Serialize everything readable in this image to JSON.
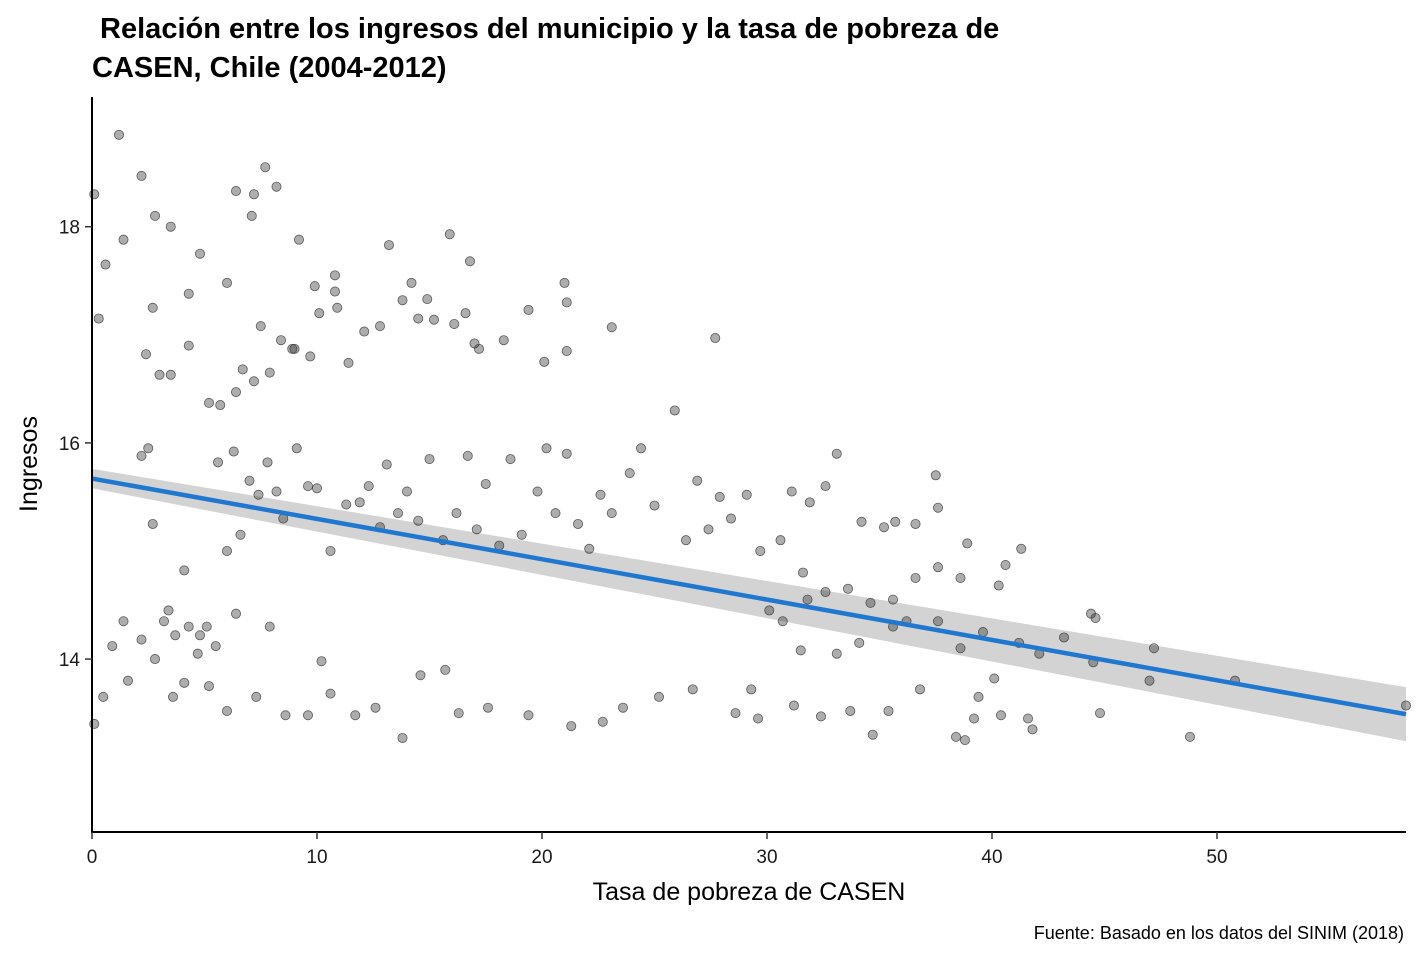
{
  "chart_data": {
    "type": "scatter",
    "title_lines": [
      " Relación entre los ingresos del municipio y la tasa de pobreza de",
      "CASEN, Chile (2004-2012)"
    ],
    "xlabel": "Tasa de pobreza de CASEN",
    "ylabel": "Ingresos",
    "caption": "Fuente: Basado en los datos del SINIM (2018)",
    "xlim": [
      0,
      58.4
    ],
    "ylim": [
      12.4,
      19.2
    ],
    "x_ticks": [
      0,
      10,
      20,
      30,
      40,
      50
    ],
    "x_tick_labels": [
      "0",
      "10",
      "20",
      "30",
      "40",
      "50"
    ],
    "y_ticks": [
      14,
      16,
      18
    ],
    "y_tick_labels": [
      "14",
      "16",
      "18"
    ],
    "grid": false,
    "legend": "none",
    "point_color": "#333333",
    "point_opacity": 0.4,
    "fit": {
      "method": "linear",
      "color": "#1f77d0",
      "band_color": "#d3d3d3",
      "x": [
        0,
        58.4
      ],
      "y": [
        15.67,
        13.49
      ],
      "ci_lower": [
        15.58,
        13.24
      ],
      "ci_upper": [
        15.76,
        13.74
      ]
    },
    "points": [
      [
        0.1,
        18.3
      ],
      [
        0.3,
        17.15
      ],
      [
        0.6,
        17.65
      ],
      [
        1.2,
        18.85
      ],
      [
        1.4,
        17.88
      ],
      [
        2.2,
        18.47
      ],
      [
        2.8,
        18.1
      ],
      [
        3.5,
        18.0
      ],
      [
        2.7,
        17.25
      ],
      [
        2.4,
        16.82
      ],
      [
        3.0,
        16.63
      ],
      [
        3.5,
        16.63
      ],
      [
        4.3,
        16.9
      ],
      [
        4.3,
        17.38
      ],
      [
        4.8,
        17.75
      ],
      [
        6.0,
        17.48
      ],
      [
        6.4,
        18.33
      ],
      [
        7.1,
        18.1
      ],
      [
        7.2,
        18.3
      ],
      [
        7.7,
        18.55
      ],
      [
        8.2,
        18.37
      ],
      [
        9.2,
        17.88
      ],
      [
        5.2,
        16.37
      ],
      [
        5.7,
        16.35
      ],
      [
        6.4,
        16.47
      ],
      [
        6.7,
        16.68
      ],
      [
        7.2,
        16.57
      ],
      [
        7.5,
        17.08
      ],
      [
        7.9,
        16.65
      ],
      [
        8.4,
        16.95
      ],
      [
        8.9,
        16.87
      ],
      [
        9.0,
        16.87
      ],
      [
        9.7,
        16.8
      ],
      [
        9.9,
        17.45
      ],
      [
        10.1,
        17.2
      ],
      [
        10.8,
        17.55
      ],
      [
        10.8,
        17.4
      ],
      [
        10.9,
        17.25
      ],
      [
        11.4,
        16.74
      ],
      [
        12.1,
        17.03
      ],
      [
        12.8,
        17.08
      ],
      [
        13.2,
        17.83
      ],
      [
        13.8,
        17.32
      ],
      [
        14.2,
        17.48
      ],
      [
        14.5,
        17.15
      ],
      [
        14.9,
        17.33
      ],
      [
        15.2,
        17.14
      ],
      [
        15.9,
        17.93
      ],
      [
        16.1,
        17.1
      ],
      [
        16.6,
        17.2
      ],
      [
        16.8,
        17.68
      ],
      [
        17.0,
        16.92
      ],
      [
        17.2,
        16.87
      ],
      [
        18.3,
        16.95
      ],
      [
        19.4,
        17.23
      ],
      [
        20.1,
        16.75
      ],
      [
        21.0,
        17.48
      ],
      [
        21.1,
        17.3
      ],
      [
        21.1,
        16.85
      ],
      [
        23.1,
        17.07
      ],
      [
        27.7,
        16.97
      ],
      [
        2.2,
        15.88
      ],
      [
        2.5,
        15.95
      ],
      [
        2.7,
        15.25
      ],
      [
        3.4,
        14.45
      ],
      [
        3.7,
        14.22
      ],
      [
        4.1,
        14.82
      ],
      [
        4.3,
        14.3
      ],
      [
        4.8,
        14.22
      ],
      [
        5.1,
        14.3
      ],
      [
        5.6,
        15.82
      ],
      [
        6.0,
        15.0
      ],
      [
        6.3,
        15.92
      ],
      [
        6.6,
        15.15
      ],
      [
        7.0,
        15.65
      ],
      [
        7.4,
        15.52
      ],
      [
        7.8,
        15.82
      ],
      [
        8.2,
        15.55
      ],
      [
        8.5,
        15.3
      ],
      [
        9.1,
        15.95
      ],
      [
        9.6,
        15.6
      ],
      [
        10.0,
        15.58
      ],
      [
        10.6,
        15.0
      ],
      [
        11.3,
        15.43
      ],
      [
        11.9,
        15.45
      ],
      [
        12.3,
        15.6
      ],
      [
        12.8,
        15.22
      ],
      [
        13.1,
        15.8
      ],
      [
        13.6,
        15.35
      ],
      [
        14.0,
        15.55
      ],
      [
        14.5,
        15.28
      ],
      [
        15.0,
        15.85
      ],
      [
        15.6,
        15.1
      ],
      [
        16.2,
        15.35
      ],
      [
        16.7,
        15.88
      ],
      [
        17.1,
        15.2
      ],
      [
        17.5,
        15.62
      ],
      [
        18.1,
        15.05
      ],
      [
        18.6,
        15.85
      ],
      [
        19.1,
        15.15
      ],
      [
        19.8,
        15.55
      ],
      [
        20.2,
        15.95
      ],
      [
        20.6,
        15.35
      ],
      [
        21.1,
        15.9
      ],
      [
        21.6,
        15.25
      ],
      [
        22.1,
        15.02
      ],
      [
        22.6,
        15.52
      ],
      [
        23.1,
        15.35
      ],
      [
        23.9,
        15.72
      ],
      [
        24.4,
        15.95
      ],
      [
        25.0,
        15.42
      ],
      [
        25.9,
        16.3
      ],
      [
        26.4,
        15.1
      ],
      [
        26.9,
        15.65
      ],
      [
        27.4,
        15.2
      ],
      [
        27.9,
        15.5
      ],
      [
        28.4,
        15.3
      ],
      [
        29.1,
        15.52
      ],
      [
        29.7,
        15.0
      ],
      [
        30.6,
        15.1
      ],
      [
        31.1,
        15.55
      ],
      [
        31.9,
        15.45
      ],
      [
        32.6,
        15.6
      ],
      [
        33.1,
        15.9
      ],
      [
        34.2,
        15.27
      ],
      [
        35.2,
        15.22
      ],
      [
        35.7,
        15.27
      ],
      [
        36.6,
        15.25
      ],
      [
        37.5,
        15.7
      ],
      [
        37.6,
        15.4
      ],
      [
        38.9,
        15.07
      ],
      [
        41.3,
        15.02
      ],
      [
        40.3,
        14.68
      ],
      [
        40.6,
        14.87
      ],
      [
        42.1,
        14.05
      ],
      [
        43.2,
        14.2
      ],
      [
        44.4,
        14.42
      ],
      [
        44.6,
        14.38
      ],
      [
        44.5,
        13.97
      ],
      [
        44.8,
        13.5
      ],
      [
        47.0,
        13.8
      ],
      [
        47.2,
        14.1
      ],
      [
        48.8,
        13.28
      ],
      [
        50.8,
        13.8
      ],
      [
        58.4,
        13.57
      ],
      [
        0.5,
        13.65
      ],
      [
        0.1,
        13.4
      ],
      [
        0.9,
        14.12
      ],
      [
        1.4,
        14.35
      ],
      [
        1.6,
        13.8
      ],
      [
        2.2,
        14.18
      ],
      [
        2.8,
        14.0
      ],
      [
        3.2,
        14.35
      ],
      [
        3.6,
        13.65
      ],
      [
        4.1,
        13.78
      ],
      [
        4.7,
        14.05
      ],
      [
        5.2,
        13.75
      ],
      [
        5.5,
        14.12
      ],
      [
        6.0,
        13.52
      ],
      [
        6.4,
        14.42
      ],
      [
        7.3,
        13.65
      ],
      [
        7.9,
        14.3
      ],
      [
        8.6,
        13.48
      ],
      [
        9.6,
        13.48
      ],
      [
        10.2,
        13.98
      ],
      [
        10.6,
        13.68
      ],
      [
        11.7,
        13.48
      ],
      [
        12.6,
        13.55
      ],
      [
        13.8,
        13.27
      ],
      [
        14.6,
        13.85
      ],
      [
        15.7,
        13.9
      ],
      [
        16.3,
        13.5
      ],
      [
        17.6,
        13.55
      ],
      [
        19.4,
        13.48
      ],
      [
        21.3,
        13.38
      ],
      [
        22.7,
        13.42
      ],
      [
        23.6,
        13.55
      ],
      [
        25.2,
        13.65
      ],
      [
        26.7,
        13.72
      ],
      [
        28.6,
        13.5
      ],
      [
        29.6,
        13.45
      ],
      [
        31.2,
        13.57
      ],
      [
        32.4,
        13.47
      ],
      [
        33.7,
        13.52
      ],
      [
        34.7,
        13.3
      ],
      [
        35.4,
        13.52
      ],
      [
        36.8,
        13.72
      ],
      [
        38.4,
        13.28
      ],
      [
        39.2,
        13.45
      ],
      [
        40.4,
        13.48
      ],
      [
        41.6,
        13.45
      ],
      [
        41.8,
        13.35
      ],
      [
        38.8,
        13.25
      ],
      [
        29.3,
        13.72
      ],
      [
        31.5,
        14.08
      ],
      [
        33.1,
        14.05
      ],
      [
        34.1,
        14.15
      ],
      [
        35.6,
        14.3
      ],
      [
        36.2,
        14.35
      ],
      [
        37.6,
        14.35
      ],
      [
        38.6,
        14.1
      ],
      [
        39.6,
        14.25
      ],
      [
        41.2,
        14.15
      ],
      [
        30.7,
        14.35
      ],
      [
        31.6,
        14.8
      ],
      [
        32.6,
        14.62
      ],
      [
        33.6,
        14.65
      ],
      [
        34.6,
        14.52
      ],
      [
        35.6,
        14.55
      ],
      [
        36.6,
        14.75
      ],
      [
        37.6,
        14.85
      ],
      [
        38.6,
        14.75
      ],
      [
        40.1,
        13.82
      ],
      [
        39.4,
        13.65
      ],
      [
        30.1,
        14.45
      ],
      [
        31.8,
        14.55
      ]
    ]
  }
}
